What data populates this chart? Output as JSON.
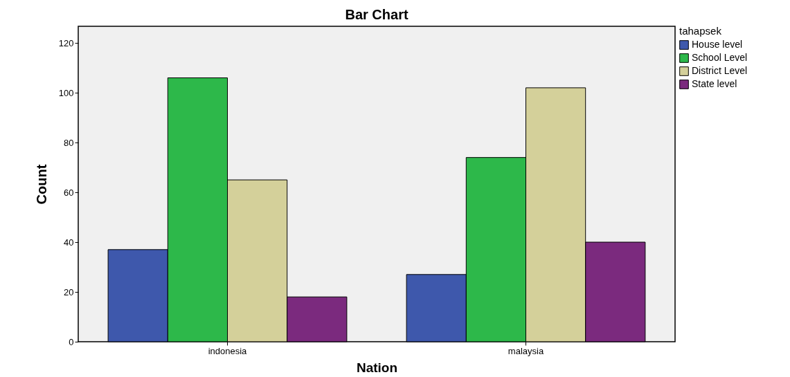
{
  "chart_data": {
    "type": "bar",
    "title": "Bar Chart",
    "xlabel": "Nation",
    "ylabel": "Count",
    "legend_title": "tahapsek",
    "categories": [
      "indonesia",
      "malaysia"
    ],
    "series": [
      {
        "name": "House level",
        "color": "#3e58ac",
        "values": [
          37,
          27
        ]
      },
      {
        "name": "School Level",
        "color": "#2db84a",
        "values": [
          106,
          74
        ]
      },
      {
        "name": "District Level",
        "color": "#d4d09a",
        "values": [
          65,
          102
        ]
      },
      {
        "name": "State level",
        "color": "#7b2a7e",
        "values": [
          18,
          40
        ]
      }
    ],
    "ylim": [
      0,
      126.7
    ],
    "yticks": [
      0,
      20,
      40,
      60,
      80,
      100,
      120
    ],
    "grid": false,
    "legend": "top right"
  }
}
